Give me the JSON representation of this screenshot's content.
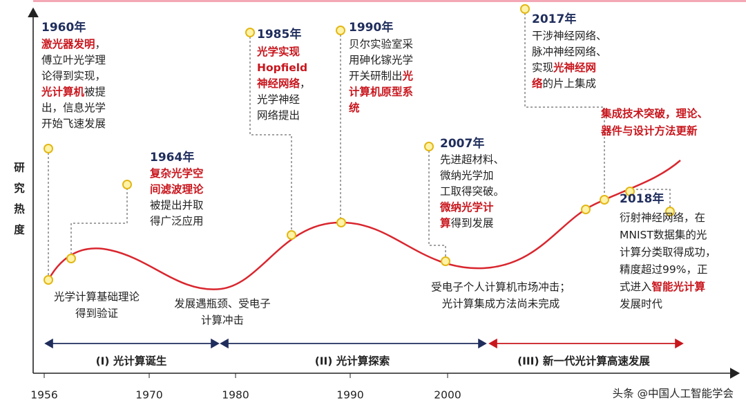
{
  "y_axis_label": "研究热度",
  "x_ticks": [
    "1956",
    "1970",
    "1980",
    "1990",
    "2000"
  ],
  "events": [
    {
      "year": "1960年",
      "lines": [
        [
          {
            "text": "激光器发明",
            "highlight": true
          },
          "，"
        ],
        [
          "傅立叶光学理"
        ],
        [
          "论得到实现，"
        ],
        [
          {
            "text": "光计算机",
            "highlight": true
          },
          "被提"
        ],
        [
          "出，信息光学"
        ],
        [
          "开始飞速发展"
        ]
      ]
    },
    {
      "year": "1964年",
      "lines": [
        [
          {
            "text": "复杂光学空",
            "highlight": true
          }
        ],
        [
          {
            "text": "间滤波理论",
            "highlight": true
          }
        ],
        [
          "被提出并取"
        ],
        [
          "得广泛应用"
        ]
      ]
    },
    {
      "year": "1985年",
      "lines": [
        [
          {
            "text": "光学实现",
            "highlight": true
          }
        ],
        [
          {
            "text": "Hopfield",
            "highlight": true
          }
        ],
        [
          {
            "text": "神经网络",
            "highlight": true
          },
          "，"
        ],
        [
          "光学神经"
        ],
        [
          "网络提出"
        ]
      ]
    },
    {
      "year": "1990年",
      "lines": [
        [
          "贝尔实验室采"
        ],
        [
          "用砷化镓光学"
        ],
        [
          "开关研制出",
          {
            "text": "光",
            "highlight": true
          }
        ],
        [
          {
            "text": "计算机原型系",
            "highlight": true
          }
        ],
        [
          {
            "text": "统",
            "highlight": true
          }
        ]
      ]
    },
    {
      "year": "2007年",
      "lines": [
        [
          "先进超材料、"
        ],
        [
          "微纳光学加"
        ],
        [
          "工取得突破。"
        ],
        [
          {
            "text": "微纳光学计",
            "highlight": true
          }
        ],
        [
          {
            "text": "算",
            "highlight": true
          },
          "得到发展"
        ]
      ]
    },
    {
      "year": "2017年",
      "lines": [
        [
          "干涉神经网络、"
        ],
        [
          "脉冲神经网络、"
        ],
        [
          "实现",
          {
            "text": "光神经网",
            "highlight": true
          }
        ],
        [
          {
            "text": "络",
            "highlight": true
          },
          "的片上集成"
        ]
      ]
    },
    {
      "year": "2018年",
      "lines": [
        [
          "衍射神经网络，在"
        ],
        [
          "MNIST数据集的光"
        ],
        [
          "计算分类取得成功，"
        ],
        [
          "精度超过99%，正"
        ],
        [
          "式进入",
          {
            "text": "智能光计算",
            "highlight": true
          }
        ],
        [
          "发展时代"
        ]
      ]
    }
  ],
  "outlook": [
    "集成技术突破，理论、",
    "器件与设计方法更新"
  ],
  "curve_notes": [
    [
      "光学计算基础理论",
      "得到验证"
    ],
    [
      "发展遇瓶颈、受电子",
      "计算冲击"
    ],
    [
      "受电子个人计算机市场冲击；",
      "光计算集成方法尚未完成"
    ]
  ],
  "phases": [
    "(I) 光计算诞生",
    "(II) 光计算探索",
    "(III) 新一代光计算高速发展"
  ],
  "watermark": "头条 @中国人工智能学会"
}
